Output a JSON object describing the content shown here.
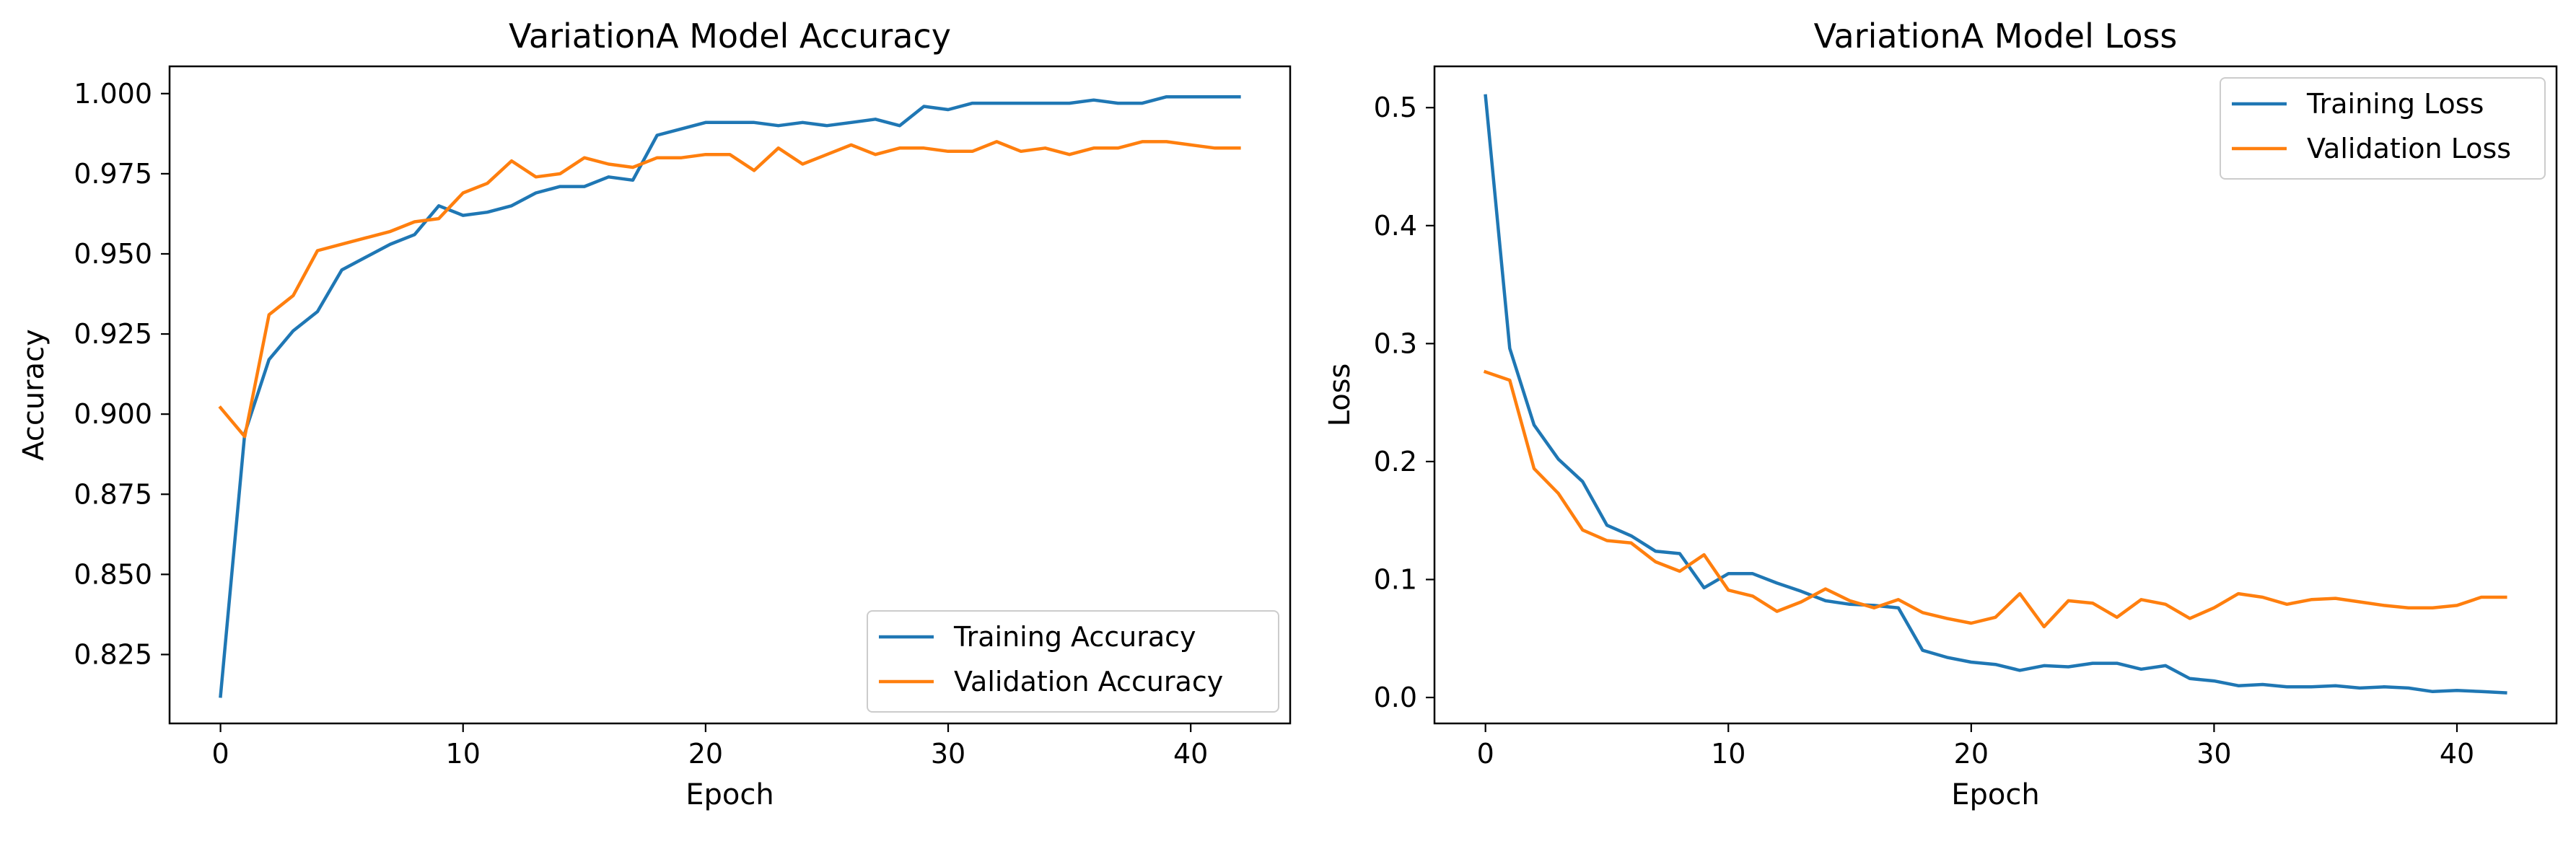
{
  "chart_data": [
    {
      "type": "line",
      "title": "VariationA Model Accuracy",
      "xlabel": "Epoch",
      "ylabel": "Accuracy",
      "xlim": [
        -2.1,
        44.1
      ],
      "ylim": [
        0.8035,
        1.0085
      ],
      "xticks": [
        0,
        10,
        20,
        30,
        40
      ],
      "xtick_labels": [
        "0",
        "10",
        "20",
        "30",
        "40"
      ],
      "yticks": [
        0.825,
        0.85,
        0.875,
        0.9,
        0.925,
        0.95,
        0.975,
        1.0
      ],
      "ytick_labels": [
        "0.825",
        "0.850",
        "0.875",
        "0.900",
        "0.925",
        "0.950",
        "0.975",
        "1.000"
      ],
      "grid": false,
      "legend": "lower right",
      "x": [
        0,
        1,
        2,
        3,
        4,
        5,
        6,
        7,
        8,
        9,
        10,
        11,
        12,
        13,
        14,
        15,
        16,
        17,
        18,
        19,
        20,
        21,
        22,
        23,
        24,
        25,
        26,
        27,
        28,
        29,
        30,
        31,
        32,
        33,
        34,
        35,
        36,
        37,
        38,
        39,
        40,
        41,
        42
      ],
      "series": [
        {
          "name": "Training Accuracy",
          "color": "#1f77b4",
          "values": [
            0.812,
            0.894,
            0.917,
            0.926,
            0.932,
            0.945,
            0.949,
            0.953,
            0.956,
            0.965,
            0.962,
            0.963,
            0.965,
            0.969,
            0.971,
            0.971,
            0.974,
            0.973,
            0.987,
            0.989,
            0.991,
            0.991,
            0.991,
            0.99,
            0.991,
            0.99,
            0.991,
            0.992,
            0.99,
            0.996,
            0.995,
            0.997,
            0.997,
            0.997,
            0.997,
            0.997,
            0.998,
            0.997,
            0.997,
            0.999,
            0.999,
            0.999,
            0.999
          ]
        },
        {
          "name": "Validation Accuracy",
          "color": "#ff7f0e",
          "values": [
            0.902,
            0.893,
            0.931,
            0.937,
            0.951,
            0.953,
            0.955,
            0.957,
            0.96,
            0.961,
            0.969,
            0.972,
            0.979,
            0.974,
            0.975,
            0.98,
            0.978,
            0.977,
            0.98,
            0.98,
            0.981,
            0.981,
            0.976,
            0.983,
            0.978,
            0.981,
            0.984,
            0.981,
            0.983,
            0.983,
            0.982,
            0.982,
            0.985,
            0.982,
            0.983,
            0.981,
            0.983,
            0.983,
            0.985,
            0.985,
            0.984,
            0.983,
            0.983
          ]
        }
      ]
    },
    {
      "type": "line",
      "title": "VariationA Model Loss",
      "xlabel": "Epoch",
      "ylabel": "Loss",
      "xlim": [
        -2.1,
        44.1
      ],
      "ylim": [
        -0.022,
        0.535
      ],
      "xticks": [
        0,
        10,
        20,
        30,
        40
      ],
      "xtick_labels": [
        "0",
        "10",
        "20",
        "30",
        "40"
      ],
      "yticks": [
        0.0,
        0.1,
        0.2,
        0.3,
        0.4,
        0.5
      ],
      "ytick_labels": [
        "0.0",
        "0.1",
        "0.2",
        "0.3",
        "0.4",
        "0.5"
      ],
      "grid": false,
      "legend": "upper right",
      "x": [
        0,
        1,
        2,
        3,
        4,
        5,
        6,
        7,
        8,
        9,
        10,
        11,
        12,
        13,
        14,
        15,
        16,
        17,
        18,
        19,
        20,
        21,
        22,
        23,
        24,
        25,
        26,
        27,
        28,
        29,
        30,
        31,
        32,
        33,
        34,
        35,
        36,
        37,
        38,
        39,
        40,
        41,
        42
      ],
      "series": [
        {
          "name": "Training Loss",
          "color": "#1f77b4",
          "values": [
            0.51,
            0.296,
            0.231,
            0.202,
            0.183,
            0.146,
            0.137,
            0.124,
            0.122,
            0.093,
            0.105,
            0.105,
            0.097,
            0.09,
            0.082,
            0.079,
            0.078,
            0.076,
            0.04,
            0.034,
            0.03,
            0.028,
            0.023,
            0.027,
            0.026,
            0.029,
            0.029,
            0.024,
            0.027,
            0.016,
            0.014,
            0.01,
            0.011,
            0.009,
            0.009,
            0.01,
            0.008,
            0.009,
            0.008,
            0.005,
            0.006,
            0.005,
            0.004
          ]
        },
        {
          "name": "Validation Loss",
          "color": "#ff7f0e",
          "values": [
            0.276,
            0.269,
            0.194,
            0.173,
            0.142,
            0.133,
            0.131,
            0.115,
            0.107,
            0.121,
            0.091,
            0.086,
            0.073,
            0.081,
            0.092,
            0.082,
            0.076,
            0.083,
            0.072,
            0.067,
            0.063,
            0.068,
            0.088,
            0.06,
            0.082,
            0.08,
            0.068,
            0.083,
            0.079,
            0.067,
            0.076,
            0.088,
            0.085,
            0.079,
            0.083,
            0.084,
            0.081,
            0.078,
            0.076,
            0.076,
            0.078,
            0.085,
            0.085
          ]
        }
      ]
    }
  ]
}
